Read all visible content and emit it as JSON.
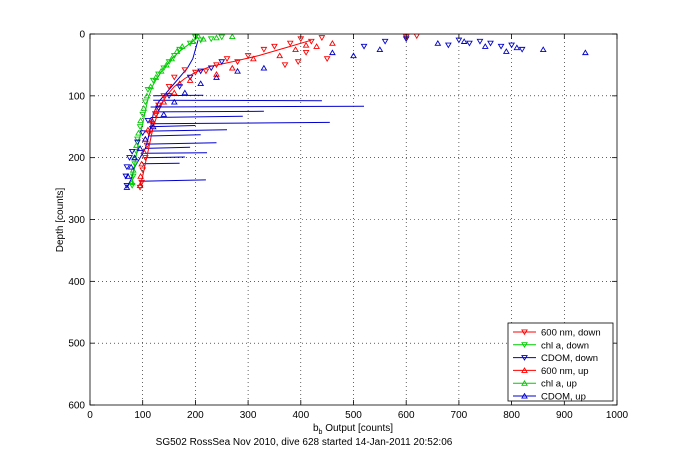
{
  "figure": {
    "caption": "SG502 RossSea Nov 2010, dive 628 started 14-Jan-2011 20:52:06"
  },
  "chart_data": {
    "type": "scatter",
    "title": "",
    "xlabel_main": "b",
    "xlabel_sub": "b",
    "xlabel_rest": " Output [counts]",
    "ylabel": "Depth [counts]",
    "xlim": [
      0,
      1000
    ],
    "ylim": [
      0,
      600
    ],
    "y_reversed": true,
    "grid": true,
    "grid_style": "dotted",
    "legend_position": "bottom-right",
    "xticks": [
      0,
      100,
      200,
      300,
      400,
      500,
      600,
      700,
      800,
      900,
      1000
    ],
    "yticks": [
      0,
      100,
      200,
      300,
      400,
      500,
      600
    ],
    "xtick_labels": [
      "0",
      "100",
      "200",
      "300",
      "400",
      "500",
      "600",
      "700",
      "800",
      "900",
      "1000"
    ],
    "ytick_labels": [
      "0",
      "100",
      "200",
      "300",
      "400",
      "500",
      "600"
    ],
    "series": [
      {
        "name": "600 nm, down",
        "color": "#ff0000",
        "marker": "triangle-down",
        "points": [
          [
            400,
            8
          ],
          [
            420,
            12
          ],
          [
            440,
            6
          ],
          [
            380,
            15
          ],
          [
            350,
            20
          ],
          [
            330,
            25
          ],
          [
            300,
            35
          ],
          [
            280,
            45
          ],
          [
            260,
            40
          ],
          [
            240,
            50
          ],
          [
            220,
            60
          ],
          [
            200,
            62
          ],
          [
            180,
            58
          ],
          [
            160,
            70
          ],
          [
            150,
            85
          ],
          [
            140,
            100
          ],
          [
            130,
            115
          ],
          [
            125,
            130
          ],
          [
            118,
            145
          ],
          [
            112,
            160
          ],
          [
            108,
            180
          ],
          [
            105,
            200
          ],
          [
            100,
            220
          ],
          [
            98,
            240
          ],
          [
            95,
            248
          ],
          [
            620,
            3
          ],
          [
            600,
            5
          ],
          [
            450,
            40
          ],
          [
            410,
            30
          ],
          [
            395,
            45
          ],
          [
            370,
            50
          ]
        ]
      },
      {
        "name": "chl a, down",
        "color": "#00cc00",
        "marker": "triangle-down",
        "points": [
          [
            200,
            5
          ],
          [
            210,
            10
          ],
          [
            190,
            15
          ],
          [
            170,
            25
          ],
          [
            160,
            35
          ],
          [
            150,
            45
          ],
          [
            140,
            55
          ],
          [
            130,
            65
          ],
          [
            120,
            75
          ],
          [
            110,
            90
          ],
          [
            105,
            110
          ],
          [
            100,
            130
          ],
          [
            95,
            150
          ],
          [
            90,
            170
          ],
          [
            88,
            190
          ],
          [
            85,
            210
          ],
          [
            82,
            230
          ],
          [
            80,
            245
          ],
          [
            230,
            8
          ],
          [
            250,
            5
          ]
        ]
      },
      {
        "name": "CDOM, down",
        "color": "#0000cc",
        "marker": "triangle-down",
        "points": [
          [
            760,
            15
          ],
          [
            780,
            20
          ],
          [
            800,
            18
          ],
          [
            820,
            25
          ],
          [
            740,
            12
          ],
          [
            720,
            15
          ],
          [
            700,
            10
          ],
          [
            680,
            18
          ],
          [
            250,
            45
          ],
          [
            230,
            55
          ],
          [
            210,
            60
          ],
          [
            190,
            70
          ],
          [
            170,
            85
          ],
          [
            150,
            100
          ],
          [
            130,
            120
          ],
          [
            110,
            140
          ],
          [
            100,
            160
          ],
          [
            90,
            175
          ],
          [
            80,
            190
          ],
          [
            75,
            200
          ],
          [
            70,
            215
          ],
          [
            68,
            230
          ],
          [
            70,
            245
          ],
          [
            600,
            8
          ],
          [
            560,
            12
          ],
          [
            520,
            20
          ]
        ]
      },
      {
        "name": "600 nm, up",
        "color": "#ff0000",
        "marker": "triangle-up",
        "points": [
          [
            390,
            25
          ],
          [
            410,
            18
          ],
          [
            360,
            35
          ],
          [
            310,
            40
          ],
          [
            270,
            55
          ],
          [
            240,
            65
          ],
          [
            190,
            75
          ],
          [
            170,
            80
          ],
          [
            160,
            95
          ],
          [
            140,
            110
          ],
          [
            125,
            125
          ],
          [
            118,
            140
          ],
          [
            110,
            155
          ],
          [
            105,
            170
          ],
          [
            102,
            190
          ],
          [
            98,
            210
          ],
          [
            96,
            230
          ],
          [
            95,
            245
          ],
          [
            430,
            20
          ],
          [
            460,
            15
          ]
        ]
      },
      {
        "name": "chl a, up",
        "color": "#00cc00",
        "marker": "triangle-up",
        "points": [
          [
            205,
            3
          ],
          [
            215,
            8
          ],
          [
            195,
            12
          ],
          [
            175,
            20
          ],
          [
            165,
            28
          ],
          [
            155,
            40
          ],
          [
            145,
            50
          ],
          [
            135,
            60
          ],
          [
            125,
            70
          ],
          [
            115,
            85
          ],
          [
            108,
            100
          ],
          [
            102,
            120
          ],
          [
            96,
            140
          ],
          [
            92,
            160
          ],
          [
            88,
            180
          ],
          [
            84,
            200
          ],
          [
            82,
            220
          ],
          [
            80,
            240
          ],
          [
            240,
            6
          ],
          [
            270,
            4
          ]
        ]
      },
      {
        "name": "CDOM, up",
        "color": "#0000cc",
        "marker": "triangle-up",
        "points": [
          [
            940,
            30
          ],
          [
            860,
            25
          ],
          [
            810,
            22
          ],
          [
            790,
            28
          ],
          [
            750,
            20
          ],
          [
            710,
            12
          ],
          [
            660,
            15
          ],
          [
            550,
            25
          ],
          [
            500,
            35
          ],
          [
            460,
            30
          ],
          [
            330,
            55
          ],
          [
            280,
            60
          ],
          [
            240,
            70
          ],
          [
            210,
            80
          ],
          [
            180,
            95
          ],
          [
            160,
            110
          ],
          [
            140,
            130
          ],
          [
            120,
            150
          ],
          [
            105,
            170
          ],
          [
            95,
            185
          ],
          [
            85,
            200
          ],
          [
            78,
            215
          ],
          [
            72,
            230
          ],
          [
            70,
            248
          ]
        ]
      }
    ],
    "profile_lines": [
      {
        "color": "#0000cc",
        "points": [
          [
            70,
            248
          ],
          [
            78,
            235
          ],
          [
            85,
            215
          ],
          [
            95,
            200
          ],
          [
            105,
            185
          ],
          [
            110,
            170
          ],
          [
            115,
            150
          ],
          [
            120,
            130
          ],
          [
            130,
            110
          ],
          [
            145,
            95
          ],
          [
            160,
            80
          ],
          [
            175,
            65
          ],
          [
            185,
            55
          ],
          [
            195,
            40
          ],
          [
            200,
            25
          ],
          [
            205,
            10
          ]
        ]
      },
      {
        "color": "#0000cc",
        "points": [
          [
            115,
            118
          ],
          [
            520,
            117
          ]
        ]
      },
      {
        "color": "#0000cc",
        "points": [
          [
            115,
            145
          ],
          [
            455,
            143
          ]
        ]
      },
      {
        "color": "#0000cc",
        "points": [
          [
            120,
            107
          ],
          [
            440,
            108
          ]
        ]
      },
      {
        "color": "#0000cc",
        "points": [
          [
            118,
            126
          ],
          [
            330,
            125
          ]
        ]
      },
      {
        "color": "#0000cc",
        "points": [
          [
            115,
            135
          ],
          [
            290,
            133
          ]
        ]
      },
      {
        "color": "#0000cc",
        "points": [
          [
            112,
            157
          ],
          [
            260,
            155
          ]
        ]
      },
      {
        "color": "#0000cc",
        "points": [
          [
            108,
            178
          ],
          [
            240,
            176
          ]
        ]
      },
      {
        "color": "#0000cc",
        "points": [
          [
            105,
            193
          ],
          [
            222,
            192
          ]
        ]
      },
      {
        "color": "#0000cc",
        "points": [
          [
            95,
            238
          ],
          [
            220,
            236
          ]
        ]
      },
      {
        "color": "#0000cc",
        "points": [
          [
            110,
            165
          ],
          [
            210,
            163
          ]
        ]
      },
      {
        "color": "#0000cc",
        "points": [
          [
            112,
            150
          ],
          [
            200,
            148
          ]
        ]
      },
      {
        "color": "#0000cc",
        "points": [
          [
            120,
            100
          ],
          [
            215,
            99
          ]
        ]
      },
      {
        "color": "#0000cc",
        "points": [
          [
            105,
            185
          ],
          [
            190,
            183
          ]
        ]
      },
      {
        "color": "#0000cc",
        "points": [
          [
            102,
            200
          ],
          [
            180,
            199
          ]
        ]
      },
      {
        "color": "#0000cc",
        "points": [
          [
            100,
            210
          ],
          [
            170,
            209
          ]
        ]
      },
      {
        "color": "#ff0000",
        "points": [
          [
            95,
            245
          ],
          [
            100,
            230
          ],
          [
            105,
            210
          ],
          [
            110,
            190
          ],
          [
            115,
            170
          ],
          [
            120,
            150
          ],
          [
            128,
            130
          ],
          [
            135,
            115
          ],
          [
            145,
            100
          ],
          [
            160,
            85
          ],
          [
            180,
            72
          ],
          [
            200,
            62
          ],
          [
            230,
            52
          ],
          [
            270,
            45
          ],
          [
            320,
            35
          ],
          [
            380,
            20
          ],
          [
            420,
            10
          ]
        ]
      },
      {
        "color": "#00cc00",
        "points": [
          [
            80,
            245
          ],
          [
            82,
            225
          ],
          [
            86,
            205
          ],
          [
            90,
            185
          ],
          [
            95,
            165
          ],
          [
            100,
            145
          ],
          [
            105,
            125
          ],
          [
            110,
            105
          ],
          [
            118,
            85
          ],
          [
            128,
            70
          ],
          [
            140,
            55
          ],
          [
            155,
            40
          ],
          [
            170,
            28
          ],
          [
            190,
            15
          ],
          [
            205,
            5
          ]
        ]
      }
    ]
  }
}
